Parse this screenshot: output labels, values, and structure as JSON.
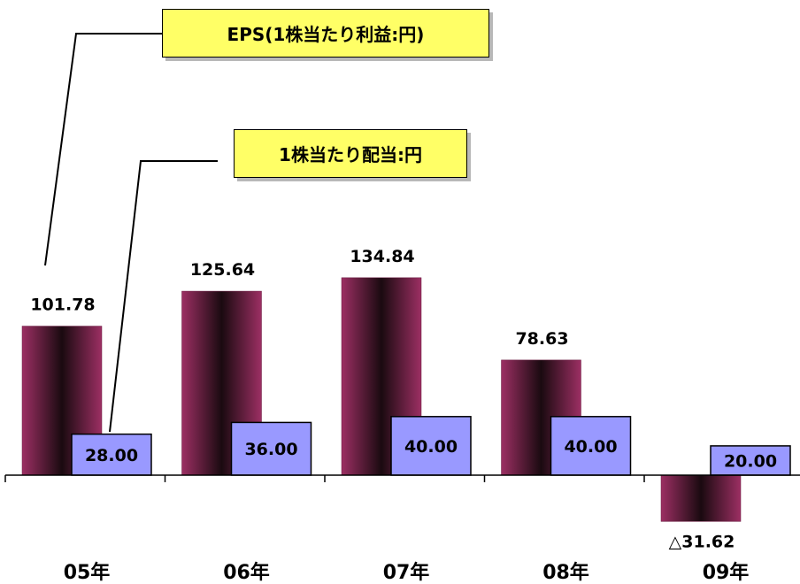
{
  "chart_data": {
    "type": "bar",
    "categories": [
      "05年",
      "06年",
      "07年",
      "08年",
      "09年"
    ],
    "series": [
      {
        "name": "EPS(1株当たり利益:円)",
        "values": [
          101.78,
          125.64,
          134.84,
          78.63,
          -31.62
        ],
        "labels": [
          "101.78",
          "125.64",
          "134.84",
          "78.63",
          "△31.62"
        ],
        "color": "#8b2252"
      },
      {
        "name": "1株当たり配当:円",
        "values": [
          28.0,
          36.0,
          40.0,
          40.0,
          20.0
        ],
        "labels": [
          "28.00",
          "36.00",
          "40.00",
          "40.00",
          "20.00"
        ],
        "color": "#9999ff"
      }
    ],
    "legend_style": "callout boxes",
    "legend_color": "#ffff66",
    "grid": false
  }
}
